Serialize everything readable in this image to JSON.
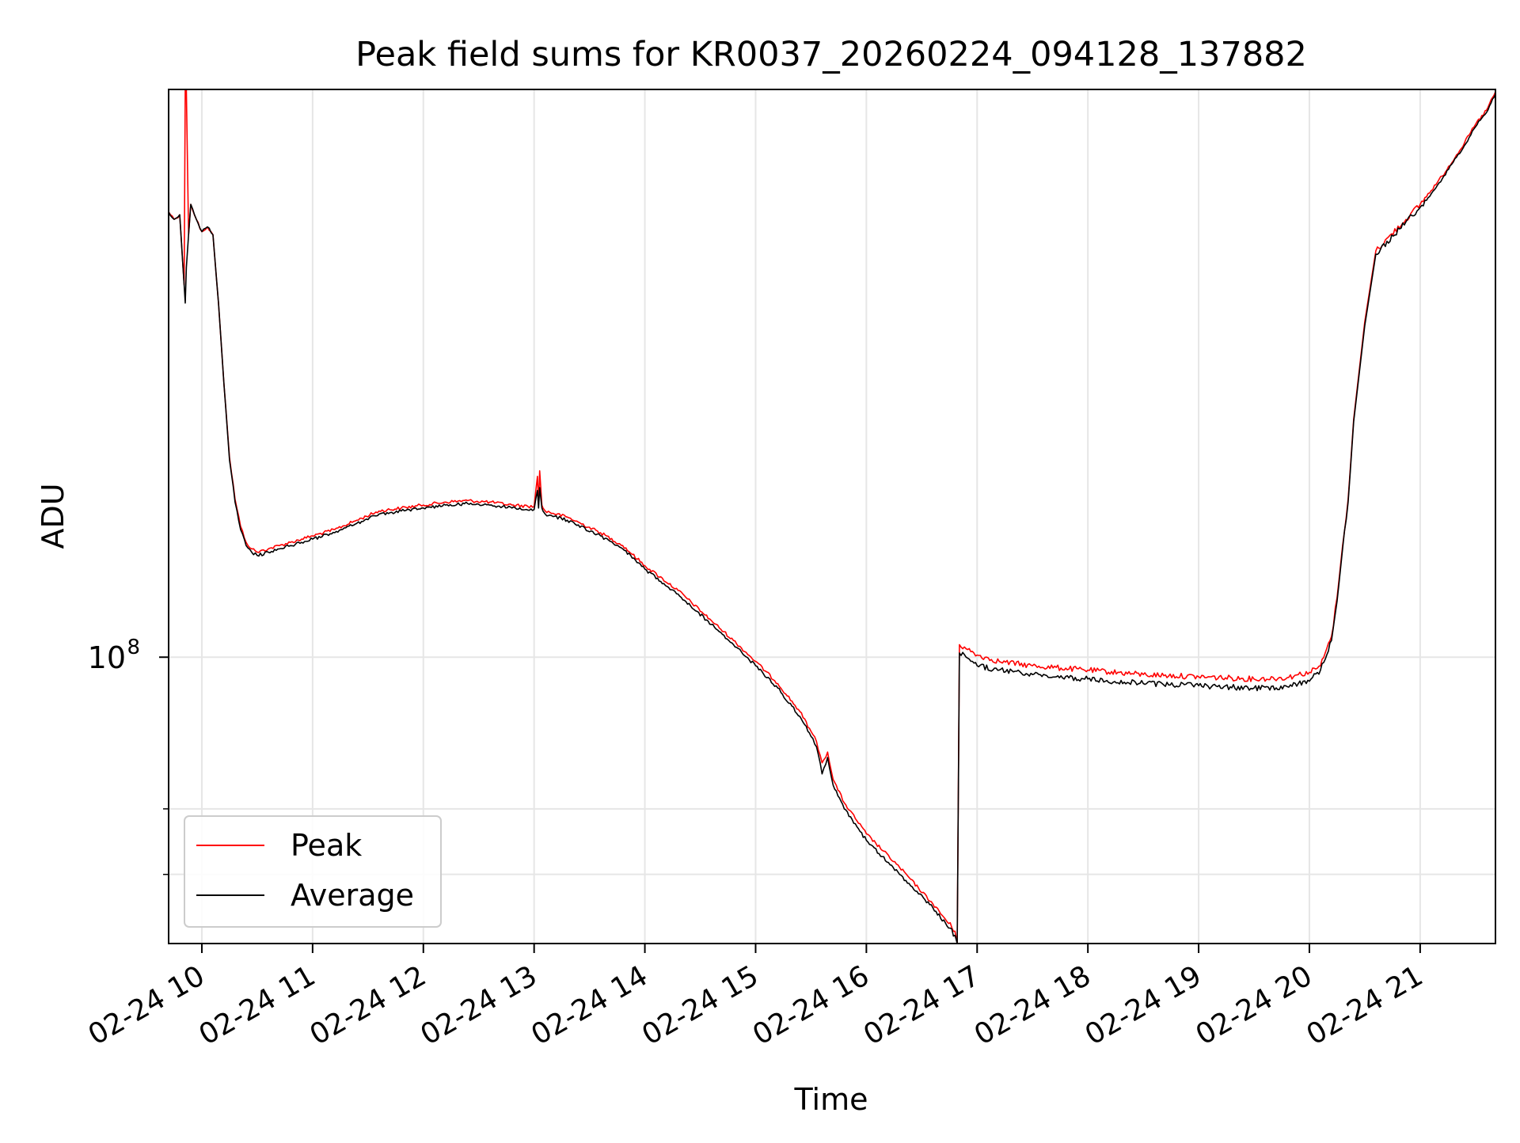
{
  "chart_data": {
    "type": "line",
    "title": "Peak field sums for KR0037_20260224_094128_137882",
    "xlabel": "Time",
    "ylabel": "ADU",
    "x_ticks": [
      "02-24 10",
      "02-24 11",
      "02-24 12",
      "02-24 13",
      "02-24 14",
      "02-24 15",
      "02-24 16",
      "02-24 17",
      "02-24 18",
      "02-24 19",
      "02-24 20",
      "02-24 21"
    ],
    "x_tick_hours": [
      10,
      11,
      12,
      13,
      14,
      15,
      16,
      17,
      18,
      19,
      20,
      21
    ],
    "xlim_hours": [
      9.7,
      21.68
    ],
    "y_scale": "log",
    "ylim": [
      51000000,
      380000000
    ],
    "y_major_tick": {
      "value": 100000000,
      "base": "10",
      "exponent": "8"
    },
    "y_minor_ticks": [
      60000000,
      70000000
    ],
    "grid": true,
    "legend": {
      "position": "lower-left",
      "entries": [
        "Peak",
        "Average"
      ]
    },
    "series_colors": {
      "Peak": "#ff0000",
      "Average": "#000000"
    },
    "series": [
      {
        "name": "Peak",
        "color": "#ff0000",
        "x_hours": [
          9.7,
          9.75,
          9.8,
          9.84,
          9.85,
          9.86,
          9.88,
          9.9,
          9.95,
          10.0,
          10.05,
          10.1,
          10.15,
          10.2,
          10.25,
          10.3,
          10.35,
          10.4,
          10.45,
          10.5,
          10.6,
          10.7,
          10.8,
          10.9,
          11.0,
          11.2,
          11.4,
          11.6,
          11.8,
          12.0,
          12.2,
          12.4,
          12.6,
          12.8,
          13.0,
          13.03,
          13.04,
          13.05,
          13.07,
          13.08,
          13.1,
          13.3,
          13.6,
          13.8,
          14.0,
          14.3,
          14.6,
          14.8,
          15.0,
          15.2,
          15.4,
          15.5,
          15.55,
          15.6,
          15.65,
          15.7,
          15.8,
          16.0,
          16.3,
          16.6,
          16.8,
          16.82,
          16.84,
          16.9,
          17.0,
          17.2,
          17.5,
          18.0,
          18.5,
          19.0,
          19.5,
          19.8,
          19.9,
          20.0,
          20.1,
          20.2,
          20.25,
          20.3,
          20.35,
          20.4,
          20.5,
          20.6,
          21.0,
          21.2,
          21.4,
          21.5,
          21.6,
          21.68
        ],
        "values": [
          285000000,
          280000000,
          283000000,
          240000000,
          380000000,
          380000000,
          270000000,
          290000000,
          280000000,
          272000000,
          275000000,
          270000000,
          230000000,
          190000000,
          160000000,
          145000000,
          136000000,
          131000000,
          129000000,
          128000000,
          129000000,
          130000000,
          131000000,
          132000000,
          133000000,
          135000000,
          138000000,
          141000000,
          142000000,
          143000000,
          144000000,
          144500000,
          144000000,
          143000000,
          142500000,
          153000000,
          143000000,
          155000000,
          143000000,
          142000000,
          141000000,
          139000000,
          134000000,
          130000000,
          124000000,
          117000000,
          109000000,
          104000000,
          99000000,
          94000000,
          88000000,
          84000000,
          82000000,
          78000000,
          80000000,
          75000000,
          71000000,
          66000000,
          61000000,
          56000000,
          52500000,
          51000000,
          103000000,
          102000000,
          100500000,
          99000000,
          98000000,
          97000000,
          96000000,
          95500000,
          95000000,
          95300000,
          96000000,
          96500000,
          98000000,
          105000000,
          115000000,
          130000000,
          145000000,
          175000000,
          220000000,
          260000000,
          290000000,
          310000000,
          335000000,
          350000000,
          362000000,
          378000000
        ]
      },
      {
        "name": "Average",
        "color": "#000000",
        "x_hours": [
          9.7,
          9.75,
          9.8,
          9.84,
          9.85,
          9.86,
          9.88,
          9.9,
          9.95,
          10.0,
          10.05,
          10.1,
          10.15,
          10.2,
          10.25,
          10.3,
          10.35,
          10.4,
          10.45,
          10.5,
          10.6,
          10.7,
          10.8,
          10.9,
          11.0,
          11.2,
          11.4,
          11.6,
          11.8,
          12.0,
          12.2,
          12.4,
          12.6,
          12.8,
          13.0,
          13.03,
          13.04,
          13.05,
          13.07,
          13.08,
          13.1,
          13.3,
          13.6,
          13.8,
          14.0,
          14.3,
          14.6,
          14.8,
          15.0,
          15.2,
          15.4,
          15.5,
          15.55,
          15.6,
          15.65,
          15.7,
          15.8,
          16.0,
          16.3,
          16.6,
          16.8,
          16.82,
          16.84,
          16.9,
          17.0,
          17.2,
          17.5,
          18.0,
          18.5,
          19.0,
          19.5,
          19.8,
          19.9,
          20.0,
          20.1,
          20.2,
          20.25,
          20.3,
          20.35,
          20.4,
          20.5,
          20.6,
          21.0,
          21.2,
          21.4,
          21.5,
          21.6,
          21.68
        ],
        "values": [
          285000000,
          280000000,
          283000000,
          240000000,
          230000000,
          250000000,
          270000000,
          290000000,
          280000000,
          272000000,
          275000000,
          270000000,
          230000000,
          190000000,
          159000000,
          144000000,
          135000000,
          130000000,
          128000000,
          127000000,
          128000000,
          129000000,
          130000000,
          131000000,
          132000000,
          134000000,
          137000000,
          140000000,
          141000000,
          142000000,
          143000000,
          143500000,
          143000000,
          142000000,
          141500000,
          148000000,
          142000000,
          149000000,
          142000000,
          141000000,
          140000000,
          138000000,
          133000000,
          129000000,
          123000000,
          116000000,
          108000000,
          103000000,
          98000000,
          93000000,
          87000000,
          83000000,
          81000000,
          76000000,
          79000000,
          74000000,
          70000000,
          65000000,
          60000000,
          55500000,
          52000000,
          51000000,
          101000000,
          100000000,
          98000000,
          97000000,
          96000000,
          95000000,
          94000000,
          93500000,
          93000000,
          93300000,
          94000000,
          94500000,
          97000000,
          104000000,
          114000000,
          129000000,
          144000000,
          174000000,
          218000000,
          258000000,
          288000000,
          308000000,
          333000000,
          348000000,
          360000000,
          376000000
        ]
      }
    ]
  }
}
